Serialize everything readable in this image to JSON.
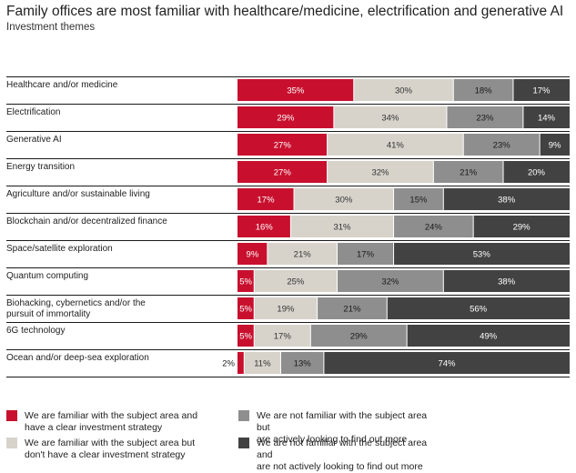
{
  "title": "Family offices are most familiar with healthcare/medicine, electrification and generative AI",
  "subtitle": "Investment themes",
  "colors": {
    "familiar_strategy": "#c8102e",
    "familiar_no_strategy": "#d7d3cb",
    "not_familiar_looking": "#8e8e8e",
    "not_familiar_not_looking": "#424242"
  },
  "chart_data": {
    "type": "bar",
    "orientation": "horizontal",
    "stacked": true,
    "xlim": [
      0,
      100
    ],
    "categories": [
      [
        "Healthcare and/or medicine"
      ],
      [
        "Electrification"
      ],
      [
        "Generative AI"
      ],
      [
        "Energy transition"
      ],
      [
        "Agriculture and/or sustainable living"
      ],
      [
        "Blockchain and/or decentralized finance"
      ],
      [
        "Space/satellite exploration"
      ],
      [
        "Quantum computing"
      ],
      [
        "Biohacking, cybernetics and/or the",
        "pursuit of immortality"
      ],
      [
        "6G technology"
      ],
      [
        "Ocean and/or deep-sea exploration"
      ]
    ],
    "series": [
      {
        "name": "We are familiar with the subject area and have a clear investment strategy",
        "legend_lines": [
          "We are familiar with the subject area and",
          "have a clear investment strategy"
        ],
        "color_key": "familiar_strategy",
        "values": [
          35,
          29,
          27,
          27,
          17,
          16,
          9,
          5,
          5,
          5,
          2
        ],
        "labels": [
          "35%",
          "29%",
          "27%",
          "27%",
          "17%",
          "16%",
          "9%",
          "5%",
          "5%",
          "5%",
          "2%"
        ]
      },
      {
        "name": "We are familiar with the subject area but don't have a clear investment strategy",
        "legend_lines": [
          "We are familiar with the subject area but",
          "don't have a clear investment strategy"
        ],
        "color_key": "familiar_no_strategy",
        "values": [
          30,
          34,
          41,
          32,
          30,
          31,
          21,
          25,
          19,
          17,
          11
        ],
        "labels": [
          "30%",
          "34%",
          "41%",
          "32%",
          "30%",
          "31%",
          "21%",
          "25%",
          "19%",
          "17%",
          "11%"
        ]
      },
      {
        "name": "We are not familiar with the subject area but are actively looking to find out more",
        "legend_lines": [
          "We are not familiar with the subject area but",
          "are actively looking to find out more"
        ],
        "color_key": "not_familiar_looking",
        "values": [
          18,
          23,
          23,
          21,
          15,
          24,
          17,
          32,
          21,
          29,
          13
        ],
        "labels": [
          "18%",
          "23%",
          "23%",
          "21%",
          "15%",
          "24%",
          "17%",
          "32%",
          "21%",
          "29%",
          "13%"
        ]
      },
      {
        "name": "We are not familiar with the subject area and are not actively looking to find out more",
        "legend_lines": [
          "We are not familiar with the subject area and",
          "are not actively looking to find out more"
        ],
        "color_key": "not_familiar_not_looking",
        "values": [
          17,
          14,
          9,
          20,
          38,
          29,
          53,
          38,
          56,
          49,
          74
        ],
        "labels": [
          "17%",
          "14%",
          "9%",
          "20%",
          "38%",
          "29%",
          "53%",
          "38%",
          "56%",
          "49%",
          "74%"
        ]
      }
    ],
    "legend_position": "bottom"
  }
}
